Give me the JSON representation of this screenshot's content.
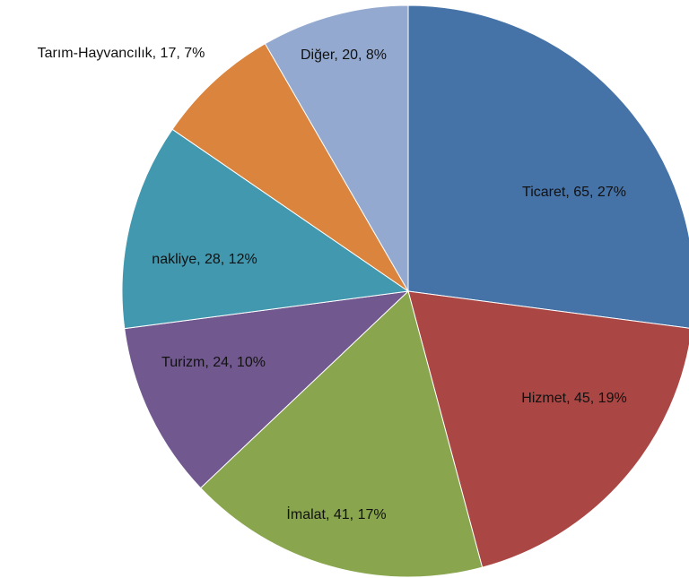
{
  "chart_data": {
    "type": "pie",
    "categories": [
      "Ticaret",
      "Hizmet",
      "İmalat",
      "Turizm",
      "nakliye",
      "Tarım-Hayvancılık",
      "Diğer"
    ],
    "values": [
      65,
      45,
      41,
      24,
      28,
      17,
      20
    ],
    "value_labels": [
      "Ticaret, 65, 27%",
      "Hizmet, 45, 19%",
      "İmalat, 41, 17%",
      "Turizm, 24, 10%",
      "nakliye, 28, 12%",
      "Tarım-Hayvancılık, 17, 7%",
      "Diğer, 20, 8%"
    ],
    "colors": [
      "#4572a7",
      "#aa4643",
      "#89a54e",
      "#71588f",
      "#4198af",
      "#db843d",
      "#93a9cf"
    ]
  }
}
